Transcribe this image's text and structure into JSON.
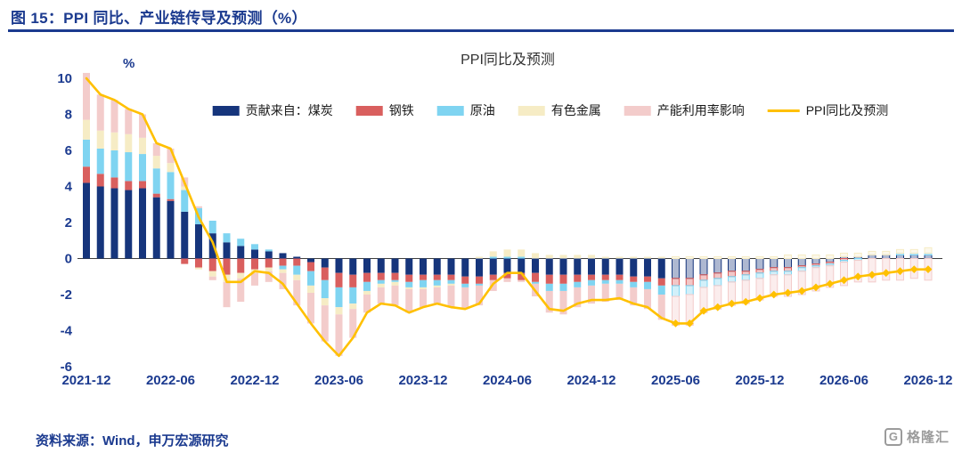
{
  "header": {
    "title": "图 15：PPI 同比、产业链传导及预测（%）"
  },
  "footer": {
    "source": "资料来源：Wind，申万宏源研究",
    "logo_text": "格隆汇",
    "logo_letter": "G"
  },
  "colors": {
    "navy_text": "#1b3a8f",
    "rule": "#1b3a8f",
    "zero_axis": "#3d3d3d",
    "logo_gray": "#9b9b9b"
  },
  "chart_data": {
    "type": "bar",
    "subtype": "stacked-bar-with-line",
    "title": "PPI同比及预测",
    "xlabel": "",
    "ylabel": "%",
    "ylim": [
      -6,
      10
    ],
    "ytick_step": 2,
    "x_tick_every": 6,
    "grid": false,
    "legend_position": "top-center",
    "categories": [
      "2021-12",
      "2022-01",
      "2022-02",
      "2022-03",
      "2022-04",
      "2022-05",
      "2022-06",
      "2022-07",
      "2022-08",
      "2022-09",
      "2022-10",
      "2022-11",
      "2022-12",
      "2023-01",
      "2023-02",
      "2023-03",
      "2023-04",
      "2023-05",
      "2023-06",
      "2023-07",
      "2023-08",
      "2023-09",
      "2023-10",
      "2023-11",
      "2023-12",
      "2024-01",
      "2024-02",
      "2024-03",
      "2024-04",
      "2024-05",
      "2024-06",
      "2024-07",
      "2024-08",
      "2024-09",
      "2024-10",
      "2024-11",
      "2024-12",
      "2025-01",
      "2025-02",
      "2025-03",
      "2025-04",
      "2025-05",
      "2025-06",
      "2025-07",
      "2025-08",
      "2025-09",
      "2025-10",
      "2025-11",
      "2025-12",
      "2026-01",
      "2026-02",
      "2026-03",
      "2026-04",
      "2026-05",
      "2026-06",
      "2026-07",
      "2026-08",
      "2026-09",
      "2026-10",
      "2026-11",
      "2026-12"
    ],
    "series": [
      {
        "key": "coal",
        "name": "贡献来自：煤炭",
        "color": "#16357c",
        "values": [
          4.2,
          4.0,
          3.9,
          3.8,
          3.9,
          3.4,
          3.2,
          2.6,
          1.9,
          1.4,
          0.9,
          0.7,
          0.5,
          0.4,
          0.3,
          0.1,
          -0.2,
          -0.5,
          -0.8,
          -0.9,
          -0.8,
          -0.8,
          -0.8,
          -0.9,
          -0.9,
          -0.9,
          -0.9,
          -1.0,
          -1.0,
          -0.9,
          -0.8,
          -0.8,
          -0.8,
          -0.9,
          -0.9,
          -0.9,
          -0.9,
          -0.9,
          -0.9,
          -1.0,
          -1.0,
          -1.1,
          -1.1,
          -1.1,
          -0.9,
          -0.8,
          -0.7,
          -0.7,
          -0.6,
          -0.5,
          -0.5,
          -0.4,
          -0.3,
          -0.2,
          0.1,
          0.1,
          0.2,
          0.2,
          0.2,
          0.2,
          0.2
        ]
      },
      {
        "key": "steel",
        "name": "钢铁",
        "color": "#d95f5e",
        "values": [
          0.9,
          0.7,
          0.6,
          0.5,
          0.4,
          0.2,
          0.1,
          -0.3,
          -0.5,
          -0.7,
          -0.9,
          -0.8,
          -0.6,
          -0.5,
          -0.4,
          -0.4,
          -0.5,
          -0.7,
          -0.8,
          -0.7,
          -0.5,
          -0.4,
          -0.4,
          -0.4,
          -0.3,
          -0.3,
          -0.3,
          -0.4,
          -0.4,
          -0.3,
          -0.3,
          -0.4,
          -0.5,
          -0.5,
          -0.5,
          -0.4,
          -0.3,
          -0.3,
          -0.3,
          -0.3,
          -0.3,
          -0.4,
          -0.4,
          -0.4,
          -0.3,
          -0.3,
          -0.3,
          -0.2,
          -0.2,
          -0.2,
          -0.2,
          -0.1,
          -0.1,
          -0.1,
          -0.1,
          0.0,
          0.0,
          0.0,
          0.0,
          0.0,
          0.0
        ]
      },
      {
        "key": "oil",
        "name": "原油",
        "color": "#7fd4f1",
        "values": [
          1.5,
          1.4,
          1.5,
          1.6,
          1.5,
          1.4,
          1.5,
          1.2,
          0.9,
          0.7,
          0.5,
          0.4,
          0.3,
          0.1,
          -0.2,
          -0.5,
          -0.8,
          -1.0,
          -1.1,
          -0.9,
          -0.5,
          -0.2,
          -0.1,
          -0.3,
          -0.4,
          -0.3,
          -0.2,
          -0.2,
          -0.1,
          0.1,
          0.1,
          0.1,
          -0.1,
          -0.4,
          -0.4,
          -0.3,
          -0.3,
          -0.2,
          -0.2,
          -0.3,
          -0.4,
          -0.5,
          -0.6,
          -0.5,
          -0.4,
          -0.4,
          -0.3,
          -0.3,
          -0.3,
          -0.2,
          -0.2,
          -0.2,
          -0.1,
          -0.1,
          -0.1,
          -0.1,
          0.0,
          0.0,
          0.1,
          0.1,
          0.1
        ]
      },
      {
        "key": "nonferrous",
        "name": "有色金属",
        "color": "#f6ecc5",
        "values": [
          1.1,
          1.0,
          1.0,
          1.0,
          0.9,
          0.7,
          0.5,
          0.2,
          -0.1,
          -0.3,
          -0.4,
          -0.3,
          -0.2,
          -0.2,
          -0.2,
          -0.3,
          -0.4,
          -0.4,
          -0.4,
          -0.3,
          -0.2,
          -0.2,
          -0.2,
          -0.1,
          -0.1,
          -0.1,
          -0.1,
          0.0,
          0.1,
          0.3,
          0.4,
          0.4,
          0.3,
          0.2,
          0.2,
          0.2,
          0.2,
          0.1,
          0.1,
          0.1,
          0.1,
          0.1,
          0.1,
          0.1,
          0.1,
          0.1,
          0.1,
          0.1,
          0.1,
          0.1,
          0.2,
          0.2,
          0.2,
          0.2,
          0.2,
          0.2,
          0.2,
          0.2,
          0.2,
          0.2,
          0.3
        ]
      },
      {
        "key": "capacity",
        "name": "产能利用率影响",
        "color": "#f3cccb",
        "values": [
          2.6,
          2.0,
          1.8,
          1.4,
          1.3,
          0.7,
          0.8,
          0.5,
          0.1,
          -0.2,
          -1.4,
          -1.3,
          -0.7,
          -0.6,
          -0.9,
          -1.4,
          -1.7,
          -2.0,
          -2.3,
          -1.6,
          -1.0,
          -0.9,
          -1.1,
          -1.3,
          -1.0,
          -0.9,
          -1.2,
          -1.2,
          -1.1,
          -0.6,
          -0.2,
          -0.1,
          -0.7,
          -1.2,
          -1.3,
          -1.1,
          -1.0,
          -1.0,
          -0.9,
          -1.0,
          -1.1,
          -1.4,
          -1.6,
          -1.7,
          -1.4,
          -1.3,
          -1.3,
          -1.3,
          -1.2,
          -1.2,
          -1.2,
          -1.3,
          -1.3,
          -1.2,
          -1.3,
          -1.2,
          -1.3,
          -1.2,
          -1.2,
          -1.1,
          -1.2
        ]
      }
    ],
    "line": {
      "key": "ppi-line",
      "name": "PPI同比及预测",
      "color": "#ffc000",
      "forecast_start_index": 42,
      "values": [
        10.0,
        9.1,
        8.8,
        8.3,
        8.0,
        6.4,
        6.1,
        4.2,
        2.3,
        0.9,
        -1.3,
        -1.3,
        -0.7,
        -0.8,
        -1.4,
        -2.5,
        -3.6,
        -4.6,
        -5.4,
        -4.4,
        -3.0,
        -2.5,
        -2.6,
        -3.0,
        -2.7,
        -2.5,
        -2.7,
        -2.8,
        -2.5,
        -1.4,
        -0.8,
        -0.8,
        -1.8,
        -2.8,
        -2.9,
        -2.5,
        -2.3,
        -2.3,
        -2.2,
        -2.5,
        -2.7,
        -3.3,
        -3.6,
        -3.6,
        -2.9,
        -2.7,
        -2.5,
        -2.4,
        -2.2,
        -2.0,
        -1.9,
        -1.8,
        -1.6,
        -1.4,
        -1.2,
        -1.0,
        -0.9,
        -0.8,
        -0.7,
        -0.6,
        -0.6
      ]
    }
  }
}
